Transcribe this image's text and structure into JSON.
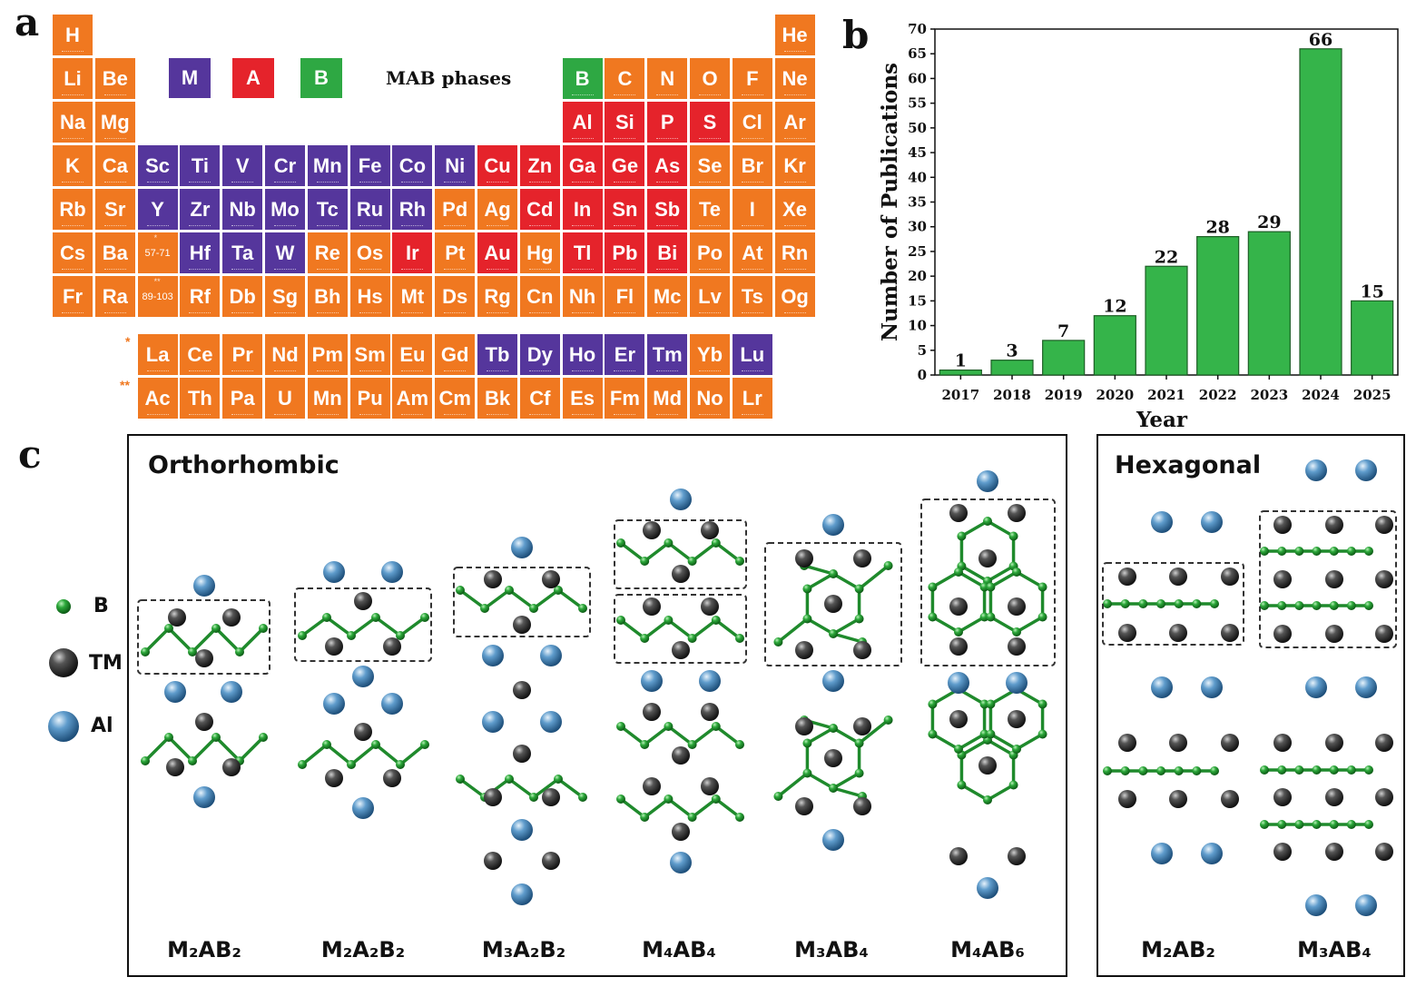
{
  "panel_labels": {
    "a": "a",
    "b": "b",
    "c": "c"
  },
  "colors": {
    "other": "#f07820",
    "M": "#55369c",
    "A": "#e5232b",
    "B": "#2ea843",
    "bar": "#35b44a"
  },
  "legend": {
    "M": "M",
    "A": "A",
    "B": "B",
    "title": "MAB phases"
  },
  "periodic_table": {
    "rows": [
      [
        {
          "s": "H",
          "t": "o"
        },
        null,
        null,
        null,
        null,
        null,
        null,
        null,
        null,
        null,
        null,
        null,
        null,
        null,
        null,
        null,
        null,
        {
          "s": "He",
          "t": "o"
        }
      ],
      [
        {
          "s": "Li",
          "t": "o"
        },
        {
          "s": "Be",
          "t": "o"
        },
        null,
        null,
        null,
        null,
        null,
        null,
        null,
        null,
        null,
        null,
        {
          "s": "B",
          "t": "B"
        },
        {
          "s": "C",
          "t": "o"
        },
        {
          "s": "N",
          "t": "o"
        },
        {
          "s": "O",
          "t": "o"
        },
        {
          "s": "F",
          "t": "o"
        },
        {
          "s": "Ne",
          "t": "o"
        }
      ],
      [
        {
          "s": "Na",
          "t": "o"
        },
        {
          "s": "Mg",
          "t": "o"
        },
        null,
        null,
        null,
        null,
        null,
        null,
        null,
        null,
        null,
        null,
        {
          "s": "Al",
          "t": "A"
        },
        {
          "s": "Si",
          "t": "A"
        },
        {
          "s": "P",
          "t": "A"
        },
        {
          "s": "S",
          "t": "A"
        },
        {
          "s": "Cl",
          "t": "o"
        },
        {
          "s": "Ar",
          "t": "o"
        }
      ],
      [
        {
          "s": "K",
          "t": "o"
        },
        {
          "s": "Ca",
          "t": "o"
        },
        {
          "s": "Sc",
          "t": "M"
        },
        {
          "s": "Ti",
          "t": "M"
        },
        {
          "s": "V",
          "t": "M"
        },
        {
          "s": "Cr",
          "t": "M"
        },
        {
          "s": "Mn",
          "t": "M"
        },
        {
          "s": "Fe",
          "t": "M"
        },
        {
          "s": "Co",
          "t": "M"
        },
        {
          "s": "Ni",
          "t": "M"
        },
        {
          "s": "Cu",
          "t": "A"
        },
        {
          "s": "Zn",
          "t": "A"
        },
        {
          "s": "Ga",
          "t": "A"
        },
        {
          "s": "Ge",
          "t": "A"
        },
        {
          "s": "As",
          "t": "A"
        },
        {
          "s": "Se",
          "t": "o"
        },
        {
          "s": "Br",
          "t": "o"
        },
        {
          "s": "Kr",
          "t": "o"
        }
      ],
      [
        {
          "s": "Rb",
          "t": "o"
        },
        {
          "s": "Sr",
          "t": "o"
        },
        {
          "s": "Y",
          "t": "M"
        },
        {
          "s": "Zr",
          "t": "M"
        },
        {
          "s": "Nb",
          "t": "M"
        },
        {
          "s": "Mo",
          "t": "M"
        },
        {
          "s": "Tc",
          "t": "M"
        },
        {
          "s": "Ru",
          "t": "M"
        },
        {
          "s": "Rh",
          "t": "M"
        },
        {
          "s": "Pd",
          "t": "o"
        },
        {
          "s": "Ag",
          "t": "o"
        },
        {
          "s": "Cd",
          "t": "A"
        },
        {
          "s": "In",
          "t": "A"
        },
        {
          "s": "Sn",
          "t": "A"
        },
        {
          "s": "Sb",
          "t": "A"
        },
        {
          "s": "Te",
          "t": "o"
        },
        {
          "s": "I",
          "t": "o"
        },
        {
          "s": "Xe",
          "t": "o"
        }
      ],
      [
        {
          "s": "Cs",
          "t": "o"
        },
        {
          "s": "Ba",
          "t": "o"
        },
        {
          "s": "57-71",
          "t": "o",
          "small": true,
          "mark": "*"
        },
        {
          "s": "Hf",
          "t": "M"
        },
        {
          "s": "Ta",
          "t": "M"
        },
        {
          "s": "W",
          "t": "M"
        },
        {
          "s": "Re",
          "t": "o"
        },
        {
          "s": "Os",
          "t": "o"
        },
        {
          "s": "Ir",
          "t": "A"
        },
        {
          "s": "Pt",
          "t": "o"
        },
        {
          "s": "Au",
          "t": "A"
        },
        {
          "s": "Hg",
          "t": "o"
        },
        {
          "s": "Tl",
          "t": "A"
        },
        {
          "s": "Pb",
          "t": "A"
        },
        {
          "s": "Bi",
          "t": "A"
        },
        {
          "s": "Po",
          "t": "o"
        },
        {
          "s": "At",
          "t": "o"
        },
        {
          "s": "Rn",
          "t": "o"
        }
      ],
      [
        {
          "s": "Fr",
          "t": "o"
        },
        {
          "s": "Ra",
          "t": "o"
        },
        {
          "s": "89-103",
          "t": "o",
          "small": true,
          "mark": "**"
        },
        {
          "s": "Rf",
          "t": "o"
        },
        {
          "s": "Db",
          "t": "o"
        },
        {
          "s": "Sg",
          "t": "o"
        },
        {
          "s": "Bh",
          "t": "o"
        },
        {
          "s": "Hs",
          "t": "o"
        },
        {
          "s": "Mt",
          "t": "o"
        },
        {
          "s": "Ds",
          "t": "o"
        },
        {
          "s": "Rg",
          "t": "o"
        },
        {
          "s": "Cn",
          "t": "o"
        },
        {
          "s": "Nh",
          "t": "o"
        },
        {
          "s": "Fl",
          "t": "o"
        },
        {
          "s": "Mc",
          "t": "o"
        },
        {
          "s": "Lv",
          "t": "o"
        },
        {
          "s": "Ts",
          "t": "o"
        },
        {
          "s": "Og",
          "t": "o"
        }
      ]
    ],
    "f_rows": [
      {
        "mark": "*",
        "cells": [
          {
            "s": "La",
            "t": "o"
          },
          {
            "s": "Ce",
            "t": "o"
          },
          {
            "s": "Pr",
            "t": "o"
          },
          {
            "s": "Nd",
            "t": "o"
          },
          {
            "s": "Pm",
            "t": "o"
          },
          {
            "s": "Sm",
            "t": "o"
          },
          {
            "s": "Eu",
            "t": "o"
          },
          {
            "s": "Gd",
            "t": "o"
          },
          {
            "s": "Tb",
            "t": "M"
          },
          {
            "s": "Dy",
            "t": "M"
          },
          {
            "s": "Ho",
            "t": "M"
          },
          {
            "s": "Er",
            "t": "M"
          },
          {
            "s": "Tm",
            "t": "M"
          },
          {
            "s": "Yb",
            "t": "o"
          },
          {
            "s": "Lu",
            "t": "M"
          }
        ]
      },
      {
        "mark": "**",
        "cells": [
          {
            "s": "Ac",
            "t": "o"
          },
          {
            "s": "Th",
            "t": "o"
          },
          {
            "s": "Pa",
            "t": "o"
          },
          {
            "s": "U",
            "t": "o"
          },
          {
            "s": "Mn",
            "t": "o"
          },
          {
            "s": "Pu",
            "t": "o"
          },
          {
            "s": "Am",
            "t": "o"
          },
          {
            "s": "Cm",
            "t": "o"
          },
          {
            "s": "Bk",
            "t": "o"
          },
          {
            "s": "Cf",
            "t": "o"
          },
          {
            "s": "Es",
            "t": "o"
          },
          {
            "s": "Fm",
            "t": "o"
          },
          {
            "s": "Md",
            "t": "o"
          },
          {
            "s": "No",
            "t": "o"
          },
          {
            "s": "Lr",
            "t": "o"
          }
        ]
      }
    ]
  },
  "chart_data": {
    "type": "bar",
    "categories": [
      "2017",
      "2018",
      "2019",
      "2020",
      "2021",
      "2022",
      "2023",
      "2024",
      "2025"
    ],
    "values": [
      1,
      3,
      7,
      12,
      22,
      28,
      29,
      66,
      15
    ],
    "value_labels": [
      "1",
      "3",
      "7",
      "12",
      "22",
      "28",
      "29",
      "66",
      "15"
    ],
    "xlabel": "Year",
    "ylabel": "Number of Publications",
    "ylim": [
      0,
      70
    ],
    "yticks": [
      "0",
      "5",
      "10",
      "15",
      "20",
      "25",
      "30",
      "35",
      "40",
      "45",
      "50",
      "55",
      "60",
      "65",
      "70"
    ],
    "grid": false
  },
  "structures": {
    "orthorhombic_title": "Orthorhombic",
    "hexagonal_title": "Hexagonal",
    "legend": {
      "B": "B",
      "TM": "TM",
      "Al": "Al"
    },
    "orthorhombic_phases": [
      "M₂AB₂",
      "M₂A₂B₂",
      "M₃A₂B₂",
      "M₄AB₄",
      "M₃AB₄",
      "M₄AB₆"
    ],
    "hexagonal_phases": [
      "M₂AB₂",
      "M₃AB₄"
    ]
  }
}
